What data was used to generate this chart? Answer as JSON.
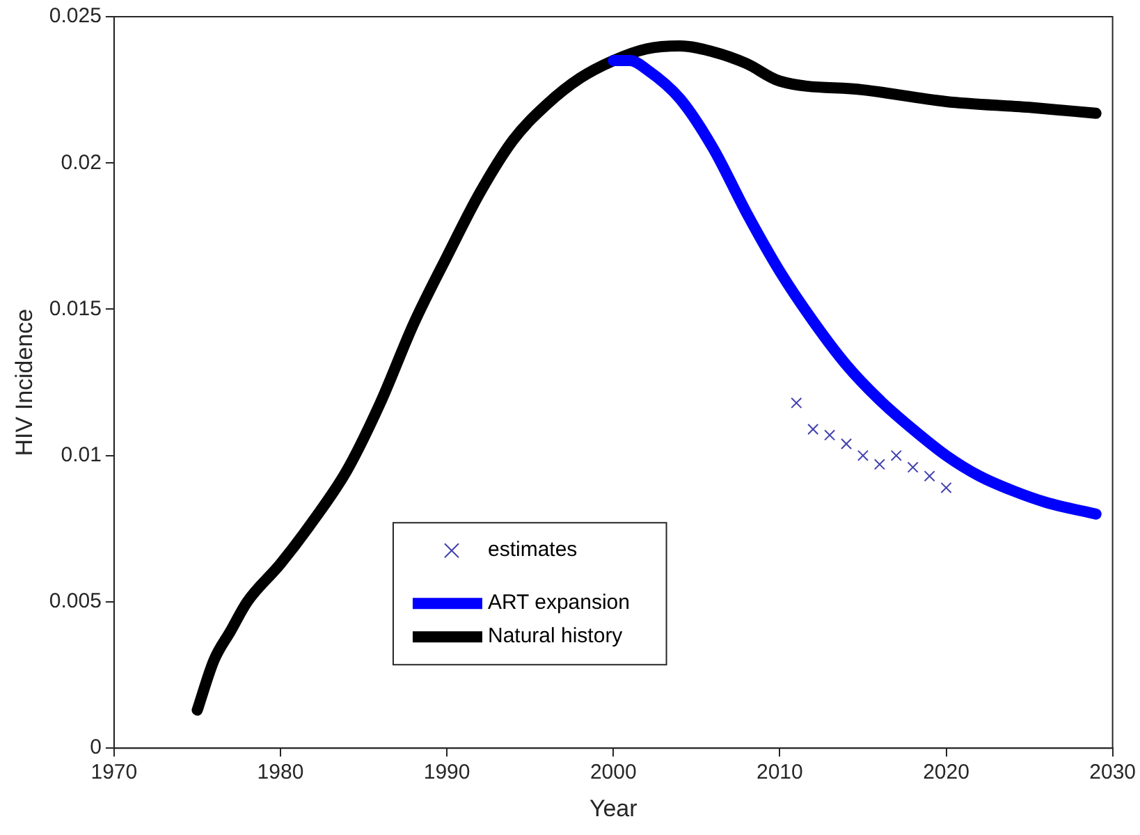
{
  "chart_data": {
    "type": "line",
    "xlabel": "Year",
    "ylabel": "HIV Incidence",
    "xlim": [
      1970,
      2030
    ],
    "xticks": [
      1970,
      1980,
      1990,
      2000,
      2010,
      2020,
      2030
    ],
    "ylim": [
      0,
      0.025
    ],
    "yticks": [
      0,
      0.005,
      0.01,
      0.015,
      0.02,
      0.025
    ],
    "grid": false,
    "legend": "bottom",
    "series": [
      {
        "name": "estimates",
        "type": "scatter",
        "marker": "cross",
        "color": "#4040b0",
        "x": [
          2011,
          2012,
          2013,
          2014,
          2015,
          2016,
          2017,
          2018,
          2019,
          2020
        ],
        "values": [
          0.0118,
          0.0109,
          0.0107,
          0.0104,
          0.01,
          0.0097,
          0.01,
          0.0096,
          0.0093,
          0.0089
        ]
      },
      {
        "name": "ART expansion",
        "type": "line",
        "marker": "none",
        "color": "#0000ff",
        "x": [
          2000,
          2001,
          2002,
          2004,
          2006,
          2008,
          2010,
          2012,
          2014,
          2016,
          2018,
          2020,
          2022,
          2024,
          2026,
          2029
        ],
        "values": [
          0.0235,
          0.0235,
          0.0232,
          0.0222,
          0.0205,
          0.0183,
          0.0163,
          0.0146,
          0.0131,
          0.0119,
          0.0109,
          0.01,
          0.0093,
          0.0088,
          0.0084,
          0.008
        ]
      },
      {
        "name": "Natural history",
        "type": "line",
        "marker": "none",
        "color": "#000000",
        "x": [
          1975,
          1976,
          1977,
          1978,
          1980,
          1982,
          1984,
          1986,
          1988,
          1990,
          1992,
          1994,
          1996,
          1998,
          2000,
          2002,
          2004,
          2006,
          2008,
          2010,
          2015,
          2020,
          2025,
          2029
        ],
        "values": [
          0.0013,
          0.003,
          0.004,
          0.005,
          0.0063,
          0.0078,
          0.0095,
          0.0118,
          0.0145,
          0.0168,
          0.019,
          0.0208,
          0.022,
          0.0229,
          0.0235,
          0.0239,
          0.024,
          0.0238,
          0.0234,
          0.0228,
          0.0225,
          0.0221,
          0.0219,
          0.0217
        ]
      }
    ]
  }
}
